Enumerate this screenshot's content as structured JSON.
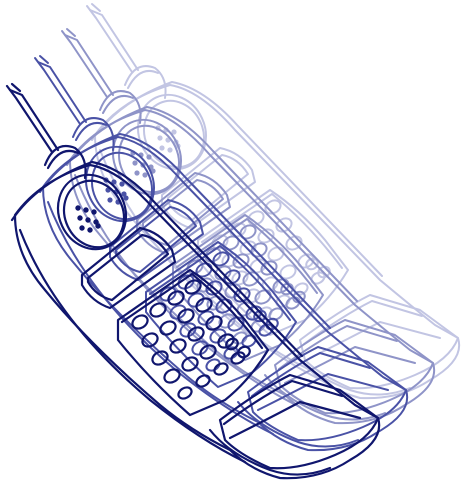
{
  "illustration": {
    "subject": "sketched-mobile-phone",
    "colors": {
      "ink_dark": "#10166e",
      "ink_mid": "#4a52a6",
      "ink_light": "#8f94c8",
      "ink_faint": "#c2c5e3",
      "background": "#ffffff"
    }
  }
}
